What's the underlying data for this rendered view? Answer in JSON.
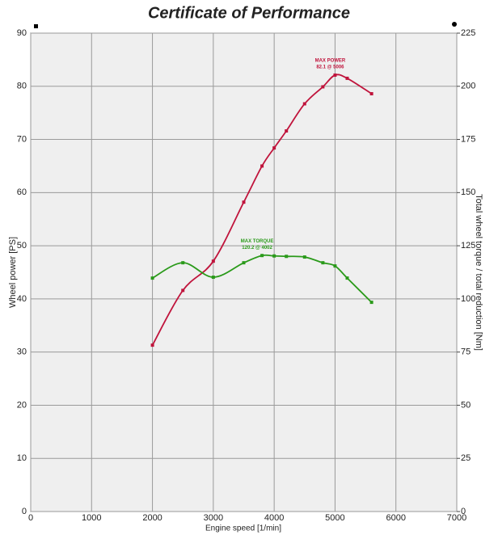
{
  "chart_data": {
    "type": "line",
    "title": "Certificate of Performance",
    "x_label": "Engine speed [1/min]",
    "y_label": "Wheel power [PS]",
    "y2_label": "Total wheel torque / total reduction [Nm]",
    "x": [
      2000,
      2500,
      3000,
      3500,
      3800,
      4000,
      4200,
      4500,
      4800,
      5000,
      5200,
      5600
    ],
    "series": [
      {
        "name": "Wheel power",
        "color": "#c0143c",
        "values": [
          31.3,
          41.6,
          47.1,
          58.2,
          65.0,
          68.4,
          71.6,
          76.7,
          79.9,
          82.1,
          81.5,
          78.6
        ]
      },
      {
        "name": "Torque",
        "color": "#2a9a1a",
        "axis": "y2",
        "values": [
          109.8,
          117.0,
          110.2,
          117.0,
          120.4,
          120.2,
          120.0,
          119.7,
          117.0,
          115.5,
          109.8,
          98.4
        ]
      }
    ],
    "annotations": [
      {
        "series": 0,
        "text": "MAX POWER",
        "detail": "82.1 @ 5006"
      },
      {
        "series": 1,
        "text": "MAX TORQUE",
        "detail": "120.2 @ 4002"
      }
    ],
    "xlim": [
      0,
      7000
    ],
    "xticks": [
      0,
      1000,
      2000,
      3000,
      4000,
      5000,
      6000,
      7000
    ],
    "ylim": [
      0,
      90
    ],
    "yticks": [
      0,
      10,
      20,
      30,
      40,
      50,
      60,
      70,
      80,
      90
    ],
    "y2lim": [
      0,
      225
    ],
    "y2ticks": [
      0,
      25,
      50,
      75,
      100,
      125,
      150,
      175,
      200,
      225
    ],
    "grid": true
  }
}
